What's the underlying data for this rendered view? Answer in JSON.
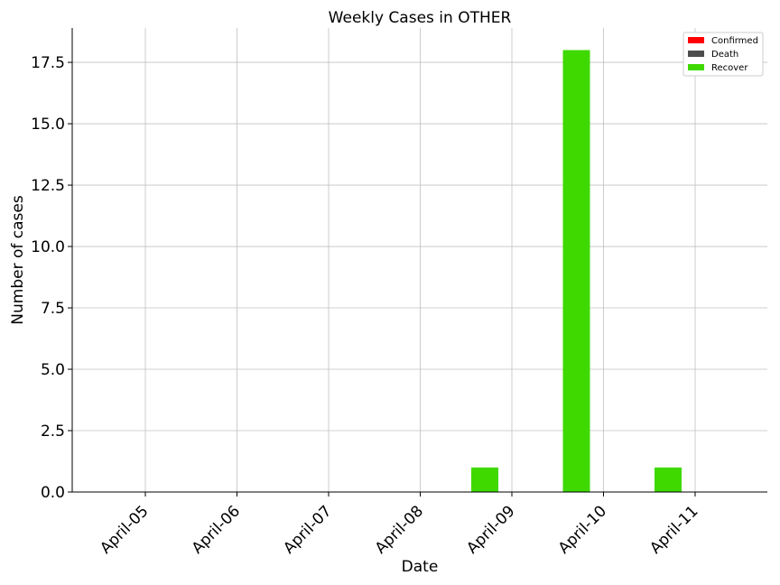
{
  "chart_data": {
    "type": "bar",
    "title": "Weekly Cases in OTHER",
    "xlabel": "Date",
    "ylabel": "Number of cases",
    "categories": [
      "April-05",
      "April-06",
      "April-07",
      "April-08",
      "April-09",
      "April-10",
      "April-11"
    ],
    "series": [
      {
        "name": "Confirmed",
        "color": "#ff0000",
        "values": [
          0,
          0,
          0,
          0,
          0,
          0,
          0
        ]
      },
      {
        "name": "Death",
        "color": "#4d4d4d",
        "values": [
          0,
          0,
          0,
          0,
          0,
          0,
          0
        ]
      },
      {
        "name": "Recover",
        "color": "#3fd900",
        "values": [
          0,
          0,
          0,
          0,
          1,
          18,
          1
        ]
      }
    ],
    "ylim": [
      0,
      18.9
    ],
    "yticks": [
      0.0,
      2.5,
      5.0,
      7.5,
      10.0,
      12.5,
      15.0,
      17.5
    ],
    "ytick_labels": [
      "0.0",
      "2.5",
      "5.0",
      "7.5",
      "10.0",
      "12.5",
      "15.0",
      "17.5"
    ],
    "grid": true,
    "legend_position": "top-right"
  }
}
